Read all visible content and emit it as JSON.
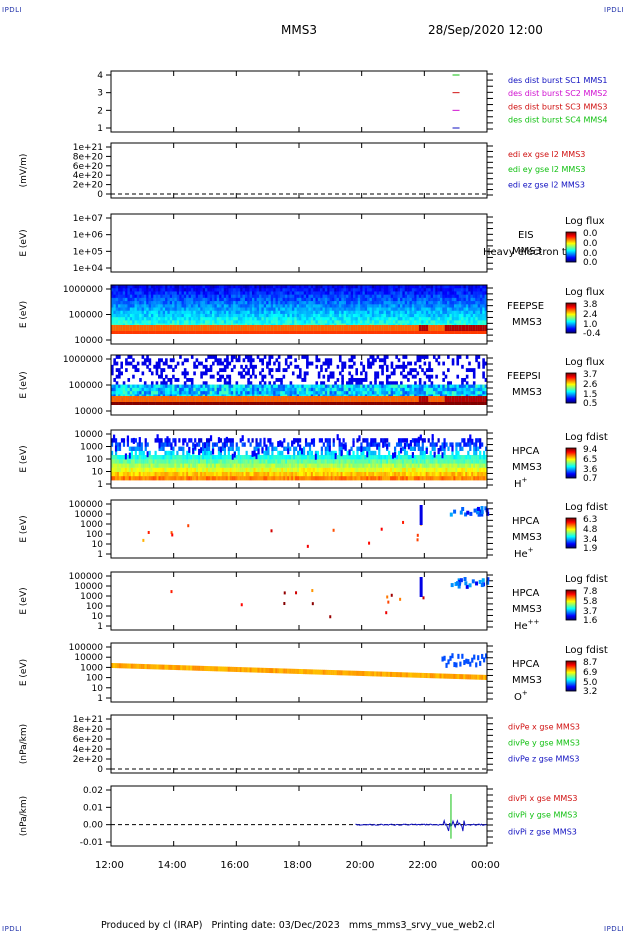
{
  "corner_label": "IPDLI",
  "header": {
    "spacecraft": "MMS3",
    "datetime": "28/Sep/2020 12:00"
  },
  "footer": {
    "text": "Produced by cl (IRAP)   Printing date: 03/Dec/2023   mms_mms3_srvy_vue_web2.cl"
  },
  "chart_data": {
    "type": "heatmap",
    "x_axis": {
      "ticks": [
        "12:00",
        "14:00",
        "16:00",
        "18:00",
        "20:00",
        "22:00",
        "00:00"
      ],
      "range_hours": [
        12,
        24
      ]
    },
    "panels": [
      {
        "id": "burst",
        "ylabel": "",
        "yticks": [
          "4",
          "3",
          "2",
          "1"
        ],
        "legend": [
          {
            "text": "des dist burst SC1 MMS1",
            "color": "#1010c0"
          },
          {
            "text": "des dist burst SC2 MMS2",
            "color": "#d010d0"
          },
          {
            "text": "des dist burst SC3 MMS3",
            "color": "#d01010"
          },
          {
            "text": "des dist burst SC4 MMS4",
            "color": "#10c010"
          }
        ],
        "marks": [
          {
            "sc": 4,
            "t": 22.9,
            "color": "#10c010"
          },
          {
            "sc": 3,
            "t": 22.9,
            "color": "#d01010"
          },
          {
            "sc": 2,
            "t": 22.9,
            "color": "#d010d0"
          },
          {
            "sc": 1,
            "t": 22.9,
            "color": "#1010c0"
          }
        ]
      },
      {
        "id": "edi",
        "ylabel": "(mV/m)",
        "yticks": [
          "1e+21",
          "8e+20",
          "6e+20",
          "4e+20",
          "2e+20",
          "0"
        ],
        "legend": [
          {
            "text": "edi ex gse l2 MMS3",
            "color": "#d01010"
          },
          {
            "text": "edi ey gse l2 MMS3",
            "color": "#10c010"
          },
          {
            "text": "edi ez gse l2 MMS3",
            "color": "#1010c0"
          }
        ]
      },
      {
        "id": "eis",
        "ylabel": "E (eV)",
        "yticks": [
          "1e+07",
          "1e+06",
          "1e+05",
          "1e+04"
        ],
        "label": "EIS",
        "overlay": "Heavy electron to",
        "sc": "MMS3",
        "colorbar": {
          "title": "Log flux",
          "ticks": [
            "0.0",
            "0.0",
            "0.0",
            "0.0"
          ]
        }
      },
      {
        "id": "feepse",
        "ylabel": "E (eV)",
        "yticks": [
          "1000000",
          "100000",
          "10000"
        ],
        "label": "FEEPSE",
        "sc": "MMS3",
        "colorbar": {
          "title": "Log flux",
          "ticks": [
            "3.8",
            "2.4",
            "1.0",
            "-0.4"
          ]
        }
      },
      {
        "id": "feepsi",
        "ylabel": "E (eV)",
        "yticks": [
          "1000000",
          "100000",
          "10000"
        ],
        "label": "FEEPSI",
        "sc": "MMS3",
        "colorbar": {
          "title": "Log flux",
          "ticks": [
            "3.7",
            "2.6",
            "1.5",
            "0.5"
          ]
        }
      },
      {
        "id": "hpca_h",
        "ylabel": "E (eV)",
        "yticks": [
          "10000",
          "1000",
          "100",
          "10",
          "1"
        ],
        "label": "HPCA",
        "sc": "MMS3",
        "species": "H",
        "species_charge": "+",
        "colorbar": {
          "title": "Log fdist",
          "ticks": [
            "9.4",
            "6.5",
            "3.6",
            "0.7"
          ]
        }
      },
      {
        "id": "hpca_he",
        "ylabel": "E (eV)",
        "yticks": [
          "100000",
          "10000",
          "1000",
          "100",
          "10",
          "1"
        ],
        "label": "HPCA",
        "sc": "MMS3",
        "species": "He",
        "species_charge": "+",
        "colorbar": {
          "title": "Log fdist",
          "ticks": [
            "6.3",
            "4.8",
            "3.4",
            "1.9"
          ]
        }
      },
      {
        "id": "hpca_hepp",
        "ylabel": "E (eV)",
        "yticks": [
          "100000",
          "10000",
          "1000",
          "100",
          "10",
          "1"
        ],
        "label": "HPCA",
        "sc": "MMS3",
        "species": "He",
        "species_charge": "++",
        "colorbar": {
          "title": "Log fdist",
          "ticks": [
            "7.8",
            "5.8",
            "3.7",
            "1.6"
          ]
        }
      },
      {
        "id": "hpca_o",
        "ylabel": "E (eV)",
        "yticks": [
          "100000",
          "10000",
          "1000",
          "100",
          "10",
          "1"
        ],
        "label": "HPCA",
        "sc": "MMS3",
        "species": "O",
        "species_charge": "+",
        "colorbar": {
          "title": "Log fdist",
          "ticks": [
            "8.7",
            "6.9",
            "5.0",
            "3.2"
          ]
        }
      },
      {
        "id": "divpe",
        "ylabel": "(nPa/km)",
        "yticks": [
          "1e+21",
          "8e+20",
          "6e+20",
          "4e+20",
          "2e+20",
          "0"
        ],
        "legend": [
          {
            "text": "divPe x gse MMS3",
            "color": "#d01010"
          },
          {
            "text": "divPe y gse MMS3",
            "color": "#10c010"
          },
          {
            "text": "divPe z gse MMS3",
            "color": "#1010c0"
          }
        ]
      },
      {
        "id": "divpi",
        "ylabel": "(nPa/km)",
        "yticks": [
          "0.02",
          "0.01",
          "0.00",
          "-0.01"
        ],
        "legend": [
          {
            "text": "divPi x gse MMS3",
            "color": "#d01010"
          },
          {
            "text": "divPi y gse MMS3",
            "color": "#10c010"
          },
          {
            "text": "divPi z gse MMS3",
            "color": "#1010c0"
          }
        ]
      }
    ]
  }
}
